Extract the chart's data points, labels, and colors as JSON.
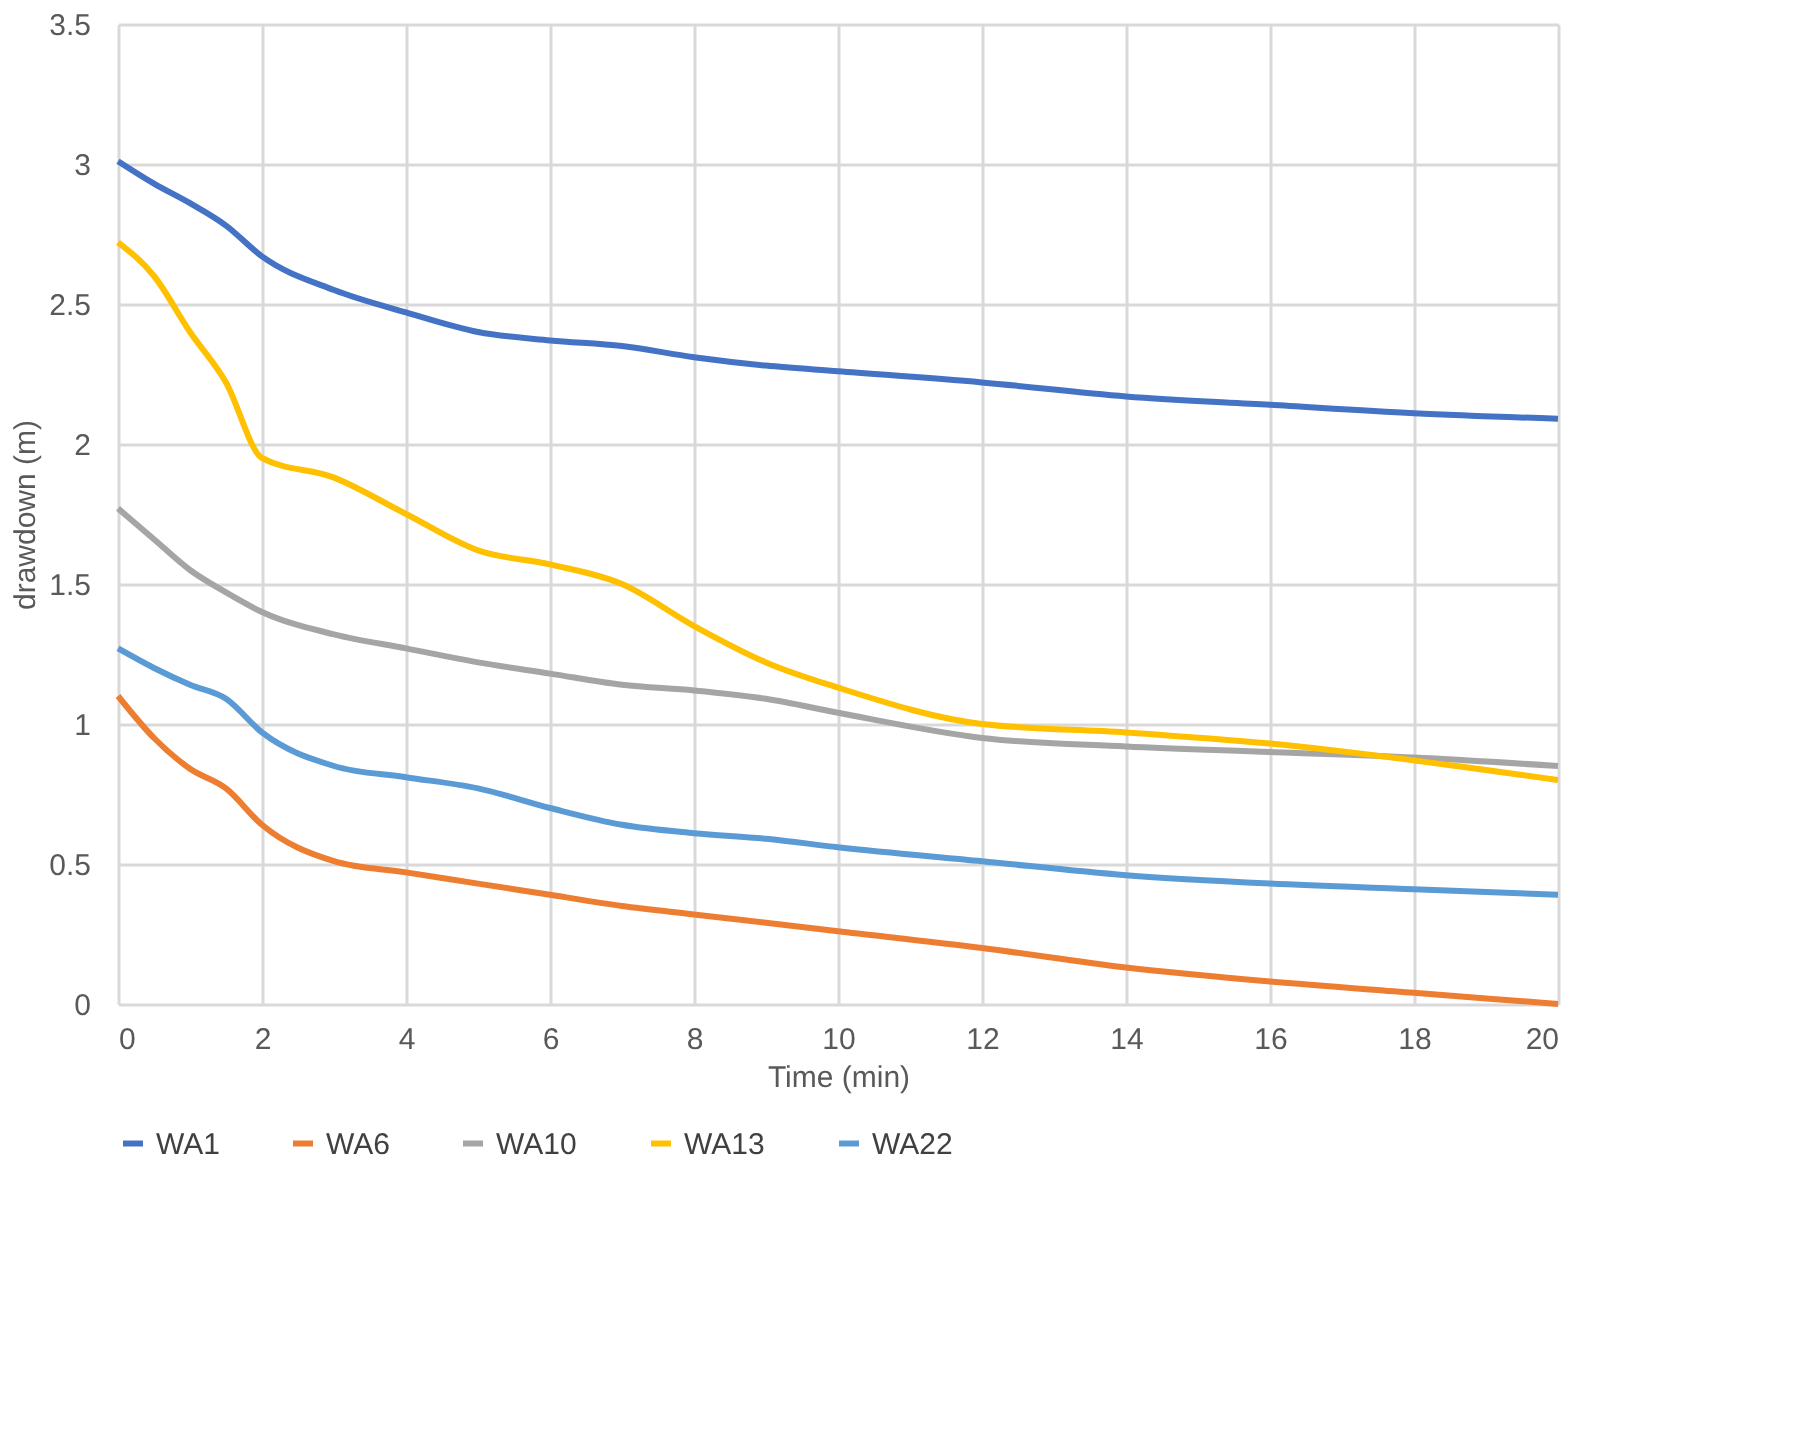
{
  "chart_data": {
    "type": "line",
    "xlabel": "Time (min)",
    "ylabel": "drawdown (m)",
    "xlim": [
      0,
      20
    ],
    "xticks": [
      0,
      2,
      4,
      6,
      8,
      10,
      12,
      14,
      16,
      18,
      20
    ],
    "ylim": [
      0,
      3.5
    ],
    "yticks": [
      0,
      0.5,
      1,
      1.5,
      2,
      2.5,
      3,
      3.5
    ],
    "grid": true,
    "legend": "bottom",
    "marker": "none",
    "line_style": "solid",
    "x": [
      0,
      0.5,
      1,
      1.5,
      2,
      3,
      4,
      5,
      6,
      7,
      8,
      9,
      10,
      12,
      14,
      16,
      18,
      20
    ],
    "series": [
      {
        "name": "WA1",
        "color": "#4472c4",
        "values": [
          3.01,
          2.93,
          2.86,
          2.78,
          2.67,
          2.55,
          2.47,
          2.4,
          2.37,
          2.35,
          2.31,
          2.28,
          2.26,
          2.22,
          2.17,
          2.14,
          2.11,
          2.09
        ]
      },
      {
        "name": "WA6",
        "color": "#ed7d31",
        "values": [
          1.1,
          0.95,
          0.84,
          0.77,
          0.64,
          0.51,
          0.47,
          0.43,
          0.39,
          0.35,
          0.32,
          0.29,
          0.26,
          0.2,
          0.13,
          0.08,
          0.04,
          0.0
        ]
      },
      {
        "name": "WA10",
        "color": "#a5a5a5",
        "values": [
          1.77,
          1.66,
          1.55,
          1.47,
          1.4,
          1.32,
          1.27,
          1.22,
          1.18,
          1.14,
          1.12,
          1.09,
          1.04,
          0.95,
          0.92,
          0.9,
          0.88,
          0.85
        ]
      },
      {
        "name": "WA13",
        "color": "#ffc000",
        "values": [
          2.72,
          2.6,
          2.4,
          2.22,
          1.95,
          1.88,
          1.75,
          1.62,
          1.57,
          1.5,
          1.35,
          1.22,
          1.13,
          1.0,
          0.97,
          0.93,
          0.87,
          0.8
        ]
      },
      {
        "name": "WA22",
        "color": "#5b9bd5",
        "values": [
          1.27,
          1.2,
          1.14,
          1.09,
          0.97,
          0.85,
          0.81,
          0.77,
          0.7,
          0.64,
          0.61,
          0.59,
          0.56,
          0.51,
          0.46,
          0.43,
          0.41,
          0.39
        ]
      }
    ]
  }
}
